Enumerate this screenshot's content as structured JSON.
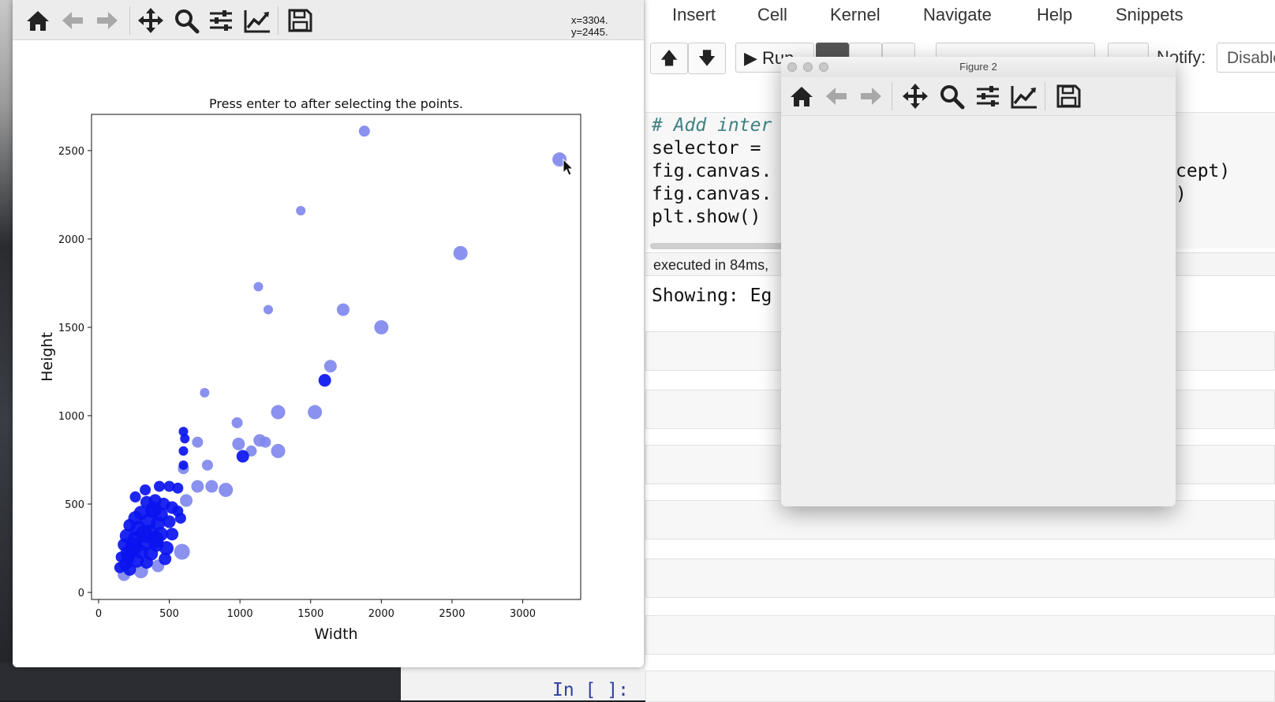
{
  "jupyter": {
    "menu": [
      "Insert",
      "Cell",
      "Kernel",
      "Navigate",
      "Help",
      "Snippets"
    ],
    "toolbar": {
      "up_icon": "arrow-up-icon",
      "down_icon": "arrow-down-icon",
      "run_label": "Run",
      "notify_label": "Notify:",
      "notify_value": "Disable"
    },
    "code_lines": [
      "# Add inter",
      "selector = ",
      "fig.canvas.",
      "fig.canvas.",
      "plt.show()"
    ],
    "code_tail_1": "cept)",
    "code_tail_2": ")",
    "exec_status": "executed in 84ms,",
    "output_text": "Showing: Eg",
    "input_prompt": "In [ ]:"
  },
  "figure1": {
    "toolbar_icons": [
      "home-icon",
      "back-arrow-icon",
      "forward-arrow-icon",
      "pan-icon",
      "zoom-icon",
      "configure-subplots-icon",
      "edit-axis-icon",
      "save-icon"
    ],
    "coords": "x=3304. y=2445."
  },
  "figure2": {
    "title": "Figure 2",
    "toolbar_icons": [
      "home-icon",
      "back-arrow-icon",
      "forward-arrow-icon",
      "pan-icon",
      "zoom-icon",
      "configure-subplots-icon",
      "edit-axis-icon",
      "save-icon"
    ]
  },
  "chart_data": {
    "type": "scatter",
    "title": "Press enter to after selecting the points.",
    "xlabel": "Width",
    "ylabel": "Height",
    "xlim": [
      -50,
      3410
    ],
    "ylim": [
      -40,
      2705
    ],
    "xticks": [
      0,
      500,
      1000,
      1500,
      2000,
      2500,
      3000
    ],
    "yticks": [
      0,
      500,
      1000,
      1500,
      2000,
      2500
    ],
    "grid": false,
    "colors": {
      "light": "#8088ee",
      "dark": "#0a14f0"
    },
    "series": [
      {
        "color": "light",
        "points": [
          [
            1880,
            2610,
            7
          ],
          [
            3260,
            2450,
            9
          ],
          [
            1430,
            2160,
            6
          ],
          [
            2560,
            1920,
            9
          ],
          [
            1130,
            1730,
            6
          ],
          [
            1200,
            1600,
            6
          ],
          [
            1730,
            1600,
            8
          ],
          [
            2000,
            1500,
            9
          ],
          [
            1640,
            1280,
            8
          ],
          [
            750,
            1130,
            6
          ],
          [
            1270,
            1020,
            9
          ],
          [
            1530,
            1020,
            9
          ],
          [
            980,
            960,
            7
          ],
          [
            990,
            840,
            8
          ],
          [
            1140,
            860,
            8
          ],
          [
            1270,
            800,
            9
          ],
          [
            1080,
            800,
            7
          ],
          [
            1180,
            850,
            7
          ],
          [
            700,
            850,
            7
          ],
          [
            770,
            720,
            7
          ],
          [
            600,
            700,
            7
          ],
          [
            900,
            580,
            9
          ],
          [
            800,
            600,
            8
          ],
          [
            700,
            600,
            8
          ],
          [
            620,
            520,
            8
          ],
          [
            590,
            230,
            10
          ],
          [
            300,
            120,
            9
          ],
          [
            180,
            100,
            8
          ],
          [
            420,
            150,
            8
          ]
        ]
      },
      {
        "color": "dark",
        "points": [
          [
            1600,
            1200,
            8
          ],
          [
            1020,
            770,
            8
          ],
          [
            600,
            910,
            6
          ],
          [
            610,
            870,
            6
          ],
          [
            600,
            800,
            6
          ],
          [
            600,
            720,
            6
          ],
          [
            430,
            600,
            7
          ],
          [
            500,
            600,
            7
          ],
          [
            560,
            590,
            7
          ],
          [
            330,
            580,
            7
          ],
          [
            260,
            540,
            7
          ],
          [
            340,
            510,
            8
          ],
          [
            400,
            520,
            8
          ],
          [
            460,
            500,
            8
          ],
          [
            520,
            480,
            8
          ],
          [
            380,
            460,
            9
          ],
          [
            300,
            450,
            9
          ],
          [
            440,
            440,
            9
          ],
          [
            260,
            420,
            9
          ],
          [
            350,
            400,
            10
          ],
          [
            420,
            390,
            9
          ],
          [
            500,
            400,
            8
          ],
          [
            220,
            380,
            8
          ],
          [
            280,
            360,
            10
          ],
          [
            360,
            340,
            10
          ],
          [
            440,
            330,
            9
          ],
          [
            200,
            320,
            9
          ],
          [
            260,
            300,
            10
          ],
          [
            330,
            280,
            10
          ],
          [
            410,
            270,
            9
          ],
          [
            180,
            270,
            8
          ],
          [
            230,
            240,
            9
          ],
          [
            300,
            230,
            9
          ],
          [
            370,
            220,
            9
          ],
          [
            160,
            200,
            7
          ],
          [
            210,
            190,
            8
          ],
          [
            270,
            180,
            9
          ],
          [
            340,
            170,
            8
          ],
          [
            480,
            250,
            9
          ],
          [
            520,
            330,
            8
          ],
          [
            580,
            420,
            7
          ],
          [
            150,
            140,
            7
          ],
          [
            220,
            130,
            8
          ],
          [
            190,
            160,
            8
          ],
          [
            470,
            190,
            8
          ],
          [
            560,
            460,
            7
          ],
          [
            320,
            330,
            11
          ],
          [
            250,
            260,
            11
          ],
          [
            400,
            300,
            11
          ],
          [
            390,
            470,
            10
          ],
          [
            210,
            220,
            10
          ]
        ]
      }
    ]
  }
}
